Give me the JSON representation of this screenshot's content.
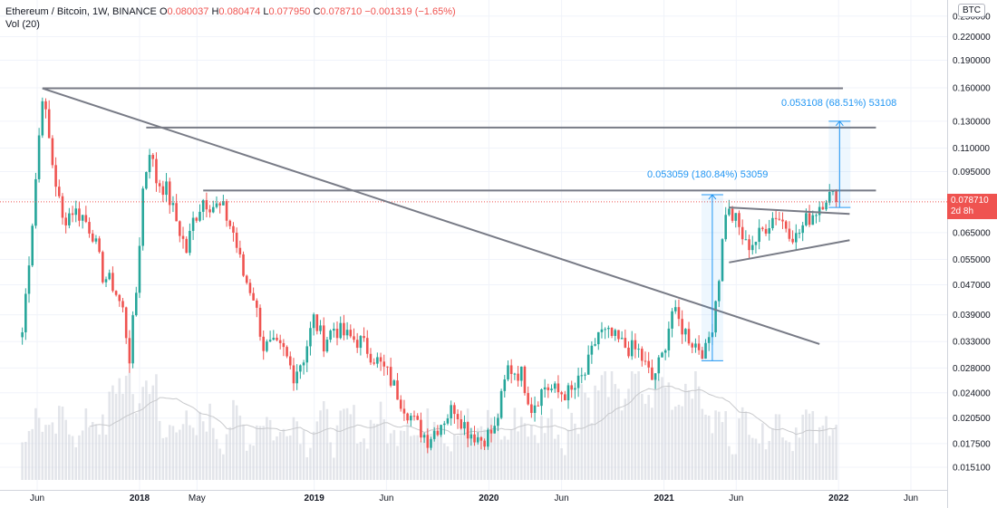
{
  "legend": {
    "symbol": "Ethereum / Bitcoin, 1W, BINANCE",
    "o_label": "O",
    "o_value": "0.080037",
    "h_label": "H",
    "h_value": "0.080474",
    "l_label": "L",
    "l_value": "0.077950",
    "c_label": "C",
    "c_value": "0.078710",
    "change": "−0.001319 (−1.65%)",
    "vol_label": "Vol (20)"
  },
  "currency_badge": "BTC",
  "last_price": {
    "value": "0.078710",
    "countdown": "2d 8h"
  },
  "measurements": [
    {
      "text": "0.053108 (68.51%) 53108"
    },
    {
      "text": "0.053059 (180.84%) 53059"
    }
  ],
  "colors": {
    "up": "#26a69a",
    "down": "#ef5350",
    "volume": "#d1d4dc",
    "line": "#787b86",
    "measure": "#2196f3",
    "grid": "#f0f3fa"
  },
  "chart_data": {
    "type": "candlestick",
    "title": "Ethereum / Bitcoin, 1W, BINANCE",
    "y_scale": "log",
    "y_ticks": [
      "0.250000",
      "0.220000",
      "0.190000",
      "0.160000",
      "0.130000",
      "0.110000",
      "0.095000",
      "0.080000",
      "0.065000",
      "0.055000",
      "0.047000",
      "0.039000",
      "0.033000",
      "0.028000",
      "0.024000",
      "0.020500",
      "0.017500",
      "0.015100"
    ],
    "x_ticks": [
      "Jun",
      "2018",
      "May",
      "2019",
      "Jun",
      "2020",
      "Jun",
      "2021",
      "Jun",
      "2022",
      "Jun"
    ],
    "x_bold": [
      "2018",
      "2019",
      "2020",
      "2021",
      "2022"
    ],
    "price_path": [
      [
        "2017-05-01",
        0.035
      ],
      [
        "2017-05-22",
        0.07
      ],
      [
        "2017-06-12",
        0.155
      ],
      [
        "2017-07-03",
        0.1
      ],
      [
        "2017-07-24",
        0.07
      ],
      [
        "2017-08-14",
        0.075
      ],
      [
        "2017-09-04",
        0.072
      ],
      [
        "2017-09-25",
        0.065
      ],
      [
        "2017-10-16",
        0.05
      ],
      [
        "2017-11-06",
        0.047
      ],
      [
        "2017-11-27",
        0.04
      ],
      [
        "2017-12-11",
        0.03
      ],
      [
        "2017-12-25",
        0.045
      ],
      [
        "2018-01-08",
        0.085
      ],
      [
        "2018-01-22",
        0.11
      ],
      [
        "2018-02-05",
        0.09
      ],
      [
        "2018-02-26",
        0.085
      ],
      [
        "2018-03-19",
        0.07
      ],
      [
        "2018-04-09",
        0.058
      ],
      [
        "2018-04-23",
        0.07
      ],
      [
        "2018-05-14",
        0.08
      ],
      [
        "2018-06-04",
        0.077
      ],
      [
        "2018-06-25",
        0.075
      ],
      [
        "2018-07-16",
        0.065
      ],
      [
        "2018-08-06",
        0.05
      ],
      [
        "2018-08-27",
        0.044
      ],
      [
        "2018-09-17",
        0.032
      ],
      [
        "2018-10-08",
        0.032
      ],
      [
        "2018-10-29",
        0.031
      ],
      [
        "2018-11-19",
        0.027
      ],
      [
        "2018-12-10",
        0.03
      ],
      [
        "2018-12-31",
        0.038
      ],
      [
        "2019-01-21",
        0.033
      ],
      [
        "2019-02-11",
        0.036
      ],
      [
        "2019-03-11",
        0.034
      ],
      [
        "2019-04-08",
        0.033
      ],
      [
        "2019-05-06",
        0.03
      ],
      [
        "2019-06-03",
        0.027
      ],
      [
        "2019-07-01",
        0.023
      ],
      [
        "2019-07-29",
        0.02
      ],
      [
        "2019-08-26",
        0.018
      ],
      [
        "2019-09-23",
        0.02
      ],
      [
        "2019-10-21",
        0.022
      ],
      [
        "2019-11-18",
        0.019
      ],
      [
        "2019-12-16",
        0.018
      ],
      [
        "2020-01-13",
        0.019
      ],
      [
        "2020-02-10",
        0.028
      ],
      [
        "2020-03-09",
        0.027
      ],
      [
        "2020-03-30",
        0.022
      ],
      [
        "2020-04-27",
        0.025
      ],
      [
        "2020-05-25",
        0.024
      ],
      [
        "2020-06-22",
        0.024
      ],
      [
        "2020-07-20",
        0.027
      ],
      [
        "2020-08-17",
        0.035
      ],
      [
        "2020-09-14",
        0.034
      ],
      [
        "2020-10-12",
        0.032
      ],
      [
        "2020-11-09",
        0.031
      ],
      [
        "2020-12-07",
        0.026
      ],
      [
        "2020-12-28",
        0.03
      ],
      [
        "2021-01-18",
        0.04
      ],
      [
        "2021-02-08",
        0.036
      ],
      [
        "2021-03-01",
        0.033
      ],
      [
        "2021-03-29",
        0.031
      ],
      [
        "2021-04-12",
        0.037
      ],
      [
        "2021-04-26",
        0.05
      ],
      [
        "2021-05-10",
        0.075
      ],
      [
        "2021-05-31",
        0.07
      ],
      [
        "2021-06-21",
        0.06
      ],
      [
        "2021-07-12",
        0.062
      ],
      [
        "2021-08-02",
        0.068
      ],
      [
        "2021-08-23",
        0.073
      ],
      [
        "2021-09-13",
        0.068
      ],
      [
        "2021-10-04",
        0.063
      ],
      [
        "2021-10-25",
        0.07
      ],
      [
        "2021-11-15",
        0.075
      ],
      [
        "2021-12-06",
        0.082
      ],
      [
        "2021-12-20",
        0.081
      ],
      [
        "2021-12-27",
        0.0787
      ]
    ],
    "trendlines": [
      {
        "from": [
          "2017-06-12",
          0.1595
        ],
        "to": [
          "2022-01-10",
          0.1595
        ]
      },
      {
        "from": [
          "2018-01-15",
          0.125
        ],
        "to": [
          "2022-03-20",
          0.125
        ]
      },
      {
        "from": [
          "2018-05-14",
          0.0845
        ],
        "to": [
          "2022-03-20",
          0.0845
        ]
      },
      {
        "from": [
          "2017-06-12",
          0.1595
        ],
        "to": [
          "2021-11-22",
          0.0325
        ]
      },
      {
        "from": [
          "2021-05-17",
          0.076
        ],
        "to": [
          "2022-01-24",
          0.073
        ]
      },
      {
        "from": [
          "2021-05-17",
          0.054
        ],
        "to": [
          "2022-01-24",
          0.062
        ]
      }
    ],
    "measures": [
      {
        "from": [
          "2022-01-03",
          0.076
        ],
        "to": [
          "2022-01-03",
          0.13
        ]
      },
      {
        "from": [
          "2021-04-12",
          0.0293
        ],
        "to": [
          "2021-04-12",
          0.0823
        ]
      }
    ],
    "last_close": 0.07871,
    "volume_type": "bar",
    "volume_ma_period": 20
  }
}
